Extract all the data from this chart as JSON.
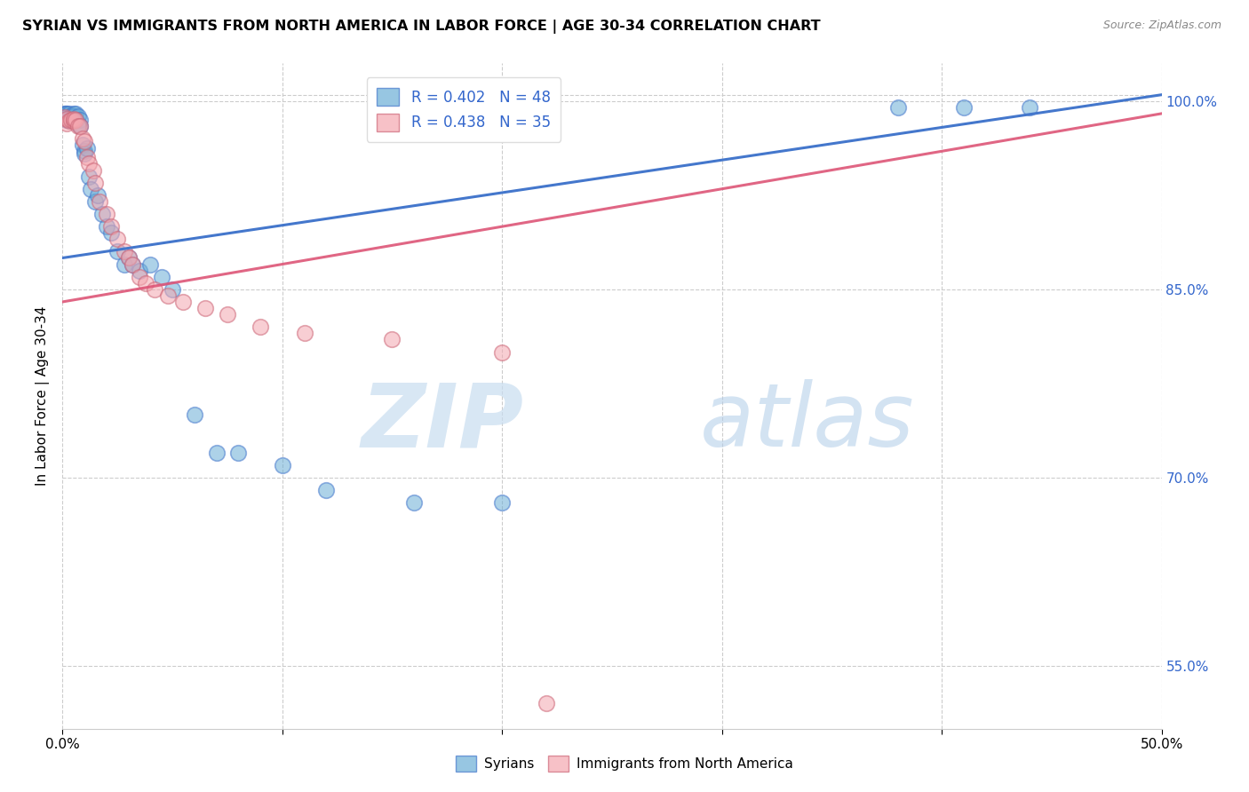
{
  "title": "SYRIAN VS IMMIGRANTS FROM NORTH AMERICA IN LABOR FORCE | AGE 30-34 CORRELATION CHART",
  "source": "Source: ZipAtlas.com",
  "ylabel": "In Labor Force | Age 30-34",
  "xlim": [
    0.0,
    0.5
  ],
  "ylim": [
    0.5,
    1.03
  ],
  "x_ticks": [
    0.0,
    0.1,
    0.2,
    0.3,
    0.4,
    0.5
  ],
  "x_tick_labels": [
    "0.0%",
    "",
    "",
    "",
    "",
    "50.0%"
  ],
  "y_ticks_right": [
    0.55,
    0.7,
    0.85,
    1.0
  ],
  "y_tick_labels_right": [
    "55.0%",
    "70.0%",
    "85.0%",
    "100.0%"
  ],
  "r_syrian": 0.402,
  "n_syrian": 48,
  "r_north_america": 0.438,
  "n_north_america": 35,
  "blue_color": "#6baed6",
  "pink_color": "#f4a7b0",
  "blue_line_color": "#4477cc",
  "pink_line_color": "#dd5577",
  "syrians_x": [
    0.001,
    0.001,
    0.002,
    0.002,
    0.002,
    0.003,
    0.003,
    0.003,
    0.004,
    0.004,
    0.005,
    0.005,
    0.005,
    0.006,
    0.006,
    0.007,
    0.007,
    0.008,
    0.008,
    0.009,
    0.01,
    0.01,
    0.011,
    0.012,
    0.013,
    0.015,
    0.016,
    0.018,
    0.02,
    0.022,
    0.025,
    0.028,
    0.03,
    0.032,
    0.035,
    0.04,
    0.045,
    0.05,
    0.06,
    0.07,
    0.08,
    0.1,
    0.12,
    0.16,
    0.2,
    0.38,
    0.41,
    0.44
  ],
  "syrians_y": [
    0.99,
    0.99,
    0.99,
    0.985,
    0.99,
    0.985,
    0.988,
    0.99,
    0.988,
    0.985,
    0.99,
    0.985,
    0.988,
    0.985,
    0.99,
    0.988,
    0.982,
    0.985,
    0.98,
    0.965,
    0.96,
    0.958,
    0.962,
    0.94,
    0.93,
    0.92,
    0.925,
    0.91,
    0.9,
    0.895,
    0.88,
    0.87,
    0.875,
    0.87,
    0.865,
    0.87,
    0.86,
    0.85,
    0.75,
    0.72,
    0.72,
    0.71,
    0.69,
    0.68,
    0.68,
    0.995,
    0.995,
    0.995
  ],
  "north_america_x": [
    0.001,
    0.002,
    0.002,
    0.003,
    0.004,
    0.005,
    0.005,
    0.006,
    0.007,
    0.008,
    0.009,
    0.01,
    0.011,
    0.012,
    0.014,
    0.015,
    0.017,
    0.02,
    0.022,
    0.025,
    0.028,
    0.03,
    0.032,
    0.035,
    0.038,
    0.042,
    0.048,
    0.055,
    0.065,
    0.075,
    0.09,
    0.11,
    0.15,
    0.2,
    0.22
  ],
  "north_america_y": [
    0.987,
    0.982,
    0.986,
    0.984,
    0.985,
    0.984,
    0.986,
    0.985,
    0.98,
    0.98,
    0.97,
    0.968,
    0.955,
    0.95,
    0.945,
    0.935,
    0.92,
    0.91,
    0.9,
    0.89,
    0.88,
    0.875,
    0.87,
    0.86,
    0.855,
    0.85,
    0.845,
    0.84,
    0.835,
    0.83,
    0.82,
    0.815,
    0.81,
    0.8,
    0.52
  ],
  "blue_line_x0": 0.0,
  "blue_line_y0": 0.875,
  "blue_line_x1": 0.5,
  "blue_line_y1": 1.005,
  "pink_line_x0": 0.0,
  "pink_line_y0": 0.84,
  "pink_line_x1": 0.5,
  "pink_line_y1": 0.99
}
